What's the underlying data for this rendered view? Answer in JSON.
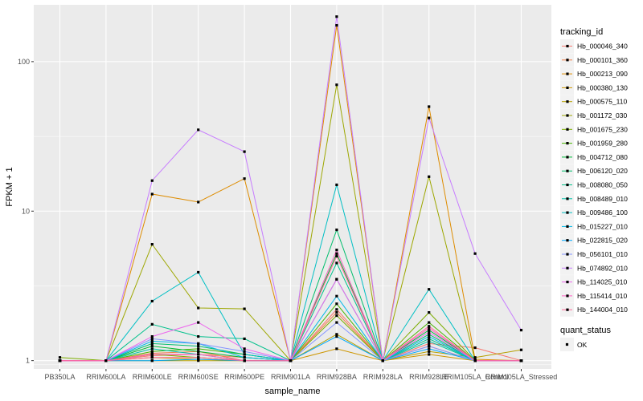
{
  "chart_data": {
    "type": "line",
    "xlabel": "sample_name",
    "ylabel": "FPKM + 1",
    "y_scale": "log10",
    "ylim": [
      0.88,
      240
    ],
    "y_ticks": [
      1,
      10,
      100
    ],
    "y_tick_labels": [
      "1",
      "10",
      "100"
    ],
    "grid": true,
    "legend_position": "right",
    "categories": [
      "PB350LA",
      "RRIM600LA",
      "RRIM600LE",
      "RRIM600SE",
      "RRIM600PE",
      "RRIM901LA",
      "RRIM928BA",
      "RRIM928LA",
      "RRIM928LE",
      "RRIM105LA_Control",
      "RRIM105LA_Stressed"
    ],
    "legend_title": "tracking_id",
    "series": [
      {
        "name": "Hb_000046_340",
        "color": "#F8766D",
        "values": [
          1.0,
          1.0,
          1.08,
          1.1,
          1.05,
          1.0,
          2.2,
          1.0,
          1.3,
          1.22,
          1.0
        ]
      },
      {
        "name": "Hb_000101_360",
        "color": "#EF7F49",
        "values": [
          1.0,
          1.0,
          1.12,
          1.15,
          1.0,
          1.0,
          2.1,
          1.0,
          1.25,
          1.0,
          1.0
        ]
      },
      {
        "name": "Hb_000213_090",
        "color": "#DE8C00",
        "values": [
          1.0,
          1.0,
          13,
          11.5,
          16.5,
          1.0,
          175,
          1.0,
          50,
          1.02,
          1.0
        ]
      },
      {
        "name": "Hb_000380_130",
        "color": "#CD9600",
        "values": [
          1.0,
          1.0,
          1.05,
          1.02,
          1.0,
          1.0,
          1.2,
          1.0,
          1.1,
          1.0,
          1.0
        ]
      },
      {
        "name": "Hb_000575_110",
        "color": "#B79F00",
        "values": [
          1.0,
          1.0,
          1.0,
          1.0,
          1.0,
          1.0,
          1.5,
          1.0,
          1.15,
          1.05,
          1.18
        ]
      },
      {
        "name": "Hb_001172_030",
        "color": "#9DA700",
        "values": [
          1.0,
          1.0,
          6.0,
          2.25,
          2.22,
          1.0,
          70,
          1.0,
          17,
          1.0,
          1.0
        ]
      },
      {
        "name": "Hb_001675_230",
        "color": "#7CAE00",
        "values": [
          1.05,
          1.0,
          1.1,
          1.05,
          1.0,
          1.0,
          2.0,
          1.0,
          2.1,
          1.0,
          1.0
        ]
      },
      {
        "name": "Hb_001959_280",
        "color": "#49B500",
        "values": [
          1.0,
          1.0,
          1.15,
          1.2,
          1.1,
          1.0,
          2.4,
          1.0,
          1.8,
          1.0,
          1.0
        ]
      },
      {
        "name": "Hb_004712_080",
        "color": "#00BA38",
        "values": [
          1.0,
          1.0,
          1.25,
          1.15,
          1.05,
          1.0,
          5.2,
          1.0,
          1.6,
          1.0,
          1.0
        ]
      },
      {
        "name": "Hb_006120_020",
        "color": "#00BE6C",
        "values": [
          1.0,
          1.0,
          1.3,
          1.25,
          1.1,
          1.0,
          7.5,
          1.0,
          1.5,
          1.0,
          1.0
        ]
      },
      {
        "name": "Hb_008080_050",
        "color": "#00C08B",
        "values": [
          1.0,
          1.0,
          1.75,
          1.45,
          1.4,
          1.0,
          4.5,
          1.0,
          1.4,
          1.0,
          1.0
        ]
      },
      {
        "name": "Hb_008489_010",
        "color": "#00C1A7",
        "values": [
          1.0,
          1.0,
          1.2,
          1.1,
          1.0,
          1.0,
          3.5,
          1.0,
          1.35,
          1.0,
          1.0
        ]
      },
      {
        "name": "Hb_009486_100",
        "color": "#00BFC4",
        "values": [
          1.0,
          1.0,
          2.5,
          3.9,
          1.1,
          1.0,
          15,
          1.0,
          3.0,
          1.0,
          1.0
        ]
      },
      {
        "name": "Hb_015227_010",
        "color": "#00B8E7",
        "values": [
          1.0,
          1.0,
          1.35,
          1.3,
          1.05,
          1.0,
          2.7,
          1.0,
          1.45,
          1.0,
          1.0
        ]
      },
      {
        "name": "Hb_022815_020",
        "color": "#00A9FF",
        "values": [
          1.0,
          1.0,
          1.0,
          1.02,
          1.0,
          1.0,
          1.45,
          1.0,
          1.2,
          1.0,
          1.0
        ]
      },
      {
        "name": "Hb_056101_010",
        "color": "#8494FF",
        "values": [
          1.0,
          1.0,
          1.4,
          1.3,
          1.15,
          1.0,
          1.8,
          1.0,
          1.25,
          1.0,
          1.0
        ]
      },
      {
        "name": "Hb_074892_010",
        "color": "#C77CFF",
        "values": [
          1.0,
          1.0,
          16,
          35,
          25,
          1.0,
          200,
          1.0,
          42,
          5.2,
          1.6
        ]
      },
      {
        "name": "Hb_114025_010",
        "color": "#ED68ED",
        "values": [
          1.0,
          1.0,
          1.45,
          1.8,
          1.2,
          1.0,
          3.5,
          1.0,
          1.55,
          1.0,
          1.0
        ]
      },
      {
        "name": "Hb_115414_010",
        "color": "#FF61C3",
        "values": [
          1.0,
          1.0,
          1.1,
          1.1,
          1.0,
          1.0,
          5.5,
          1.0,
          1.65,
          1.0,
          1.0
        ]
      },
      {
        "name": "Hb_144004_010",
        "color": "#FF6A98",
        "values": [
          1.0,
          1.0,
          1.05,
          1.05,
          1.0,
          1.0,
          5.0,
          1.0,
          1.7,
          1.0,
          1.0
        ]
      }
    ],
    "shape_legend_title": "quant_status",
    "shape_legend_label": "OK"
  }
}
